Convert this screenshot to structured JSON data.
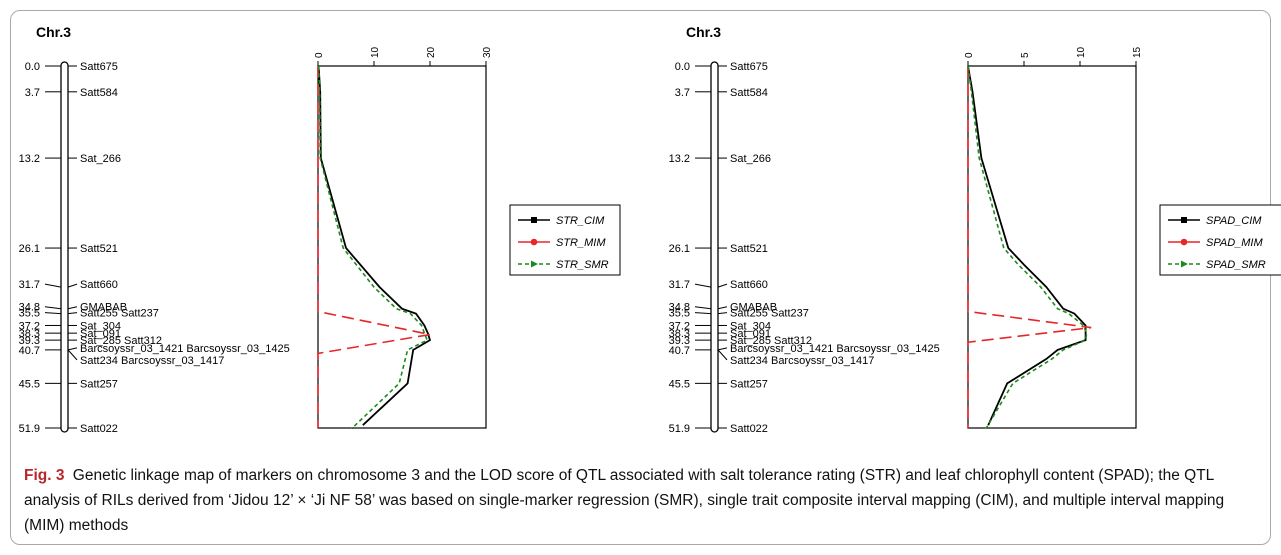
{
  "caption": {
    "label": "Fig. 3",
    "text": "Genetic linkage map of markers on chromosome 3 and the LOD score of QTL associated with salt tolerance rating (STR) and leaf chlorophyll content (SPAD); the QTL analysis of RILs derived from ‘Jidou 12’ × ‘Ji NF 58’ was based on single-marker regression (SMR), single trait composite interval mapping (CIM), and multiple interval mapping (MIM) methods"
  },
  "linkage_map": {
    "title": "Chr.3",
    "markers": [
      {
        "pos": 0.0,
        "pos_label": "0.0",
        "label": "Satt675"
      },
      {
        "pos": 3.7,
        "pos_label": "3.7",
        "label": "Satt584"
      },
      {
        "pos": 13.2,
        "pos_label": "13.2",
        "label": "Sat_266"
      },
      {
        "pos": 26.1,
        "pos_label": "26.1",
        "label": "Satt521"
      },
      {
        "pos": 31.7,
        "pos_label": "31.7",
        "label": "Satt660"
      },
      {
        "pos": 34.8,
        "pos_label": "34.8",
        "label": "GMABAB"
      },
      {
        "pos": 35.5,
        "pos_label": "35.5",
        "label": "Satt255 Satt237"
      },
      {
        "pos": 37.2,
        "pos_label": "37.2",
        "label": "Sat_304"
      },
      {
        "pos": 38.3,
        "pos_label": "38.3",
        "label": "Sat_091"
      },
      {
        "pos": 39.3,
        "pos_label": "39.3",
        "label": "Sat_285 Satt312"
      },
      {
        "pos": 40.7,
        "pos_label": "40.7",
        "label": "Barcsoyssr_03_1421 Barcsoyssr_03_1425"
      },
      {
        "pos": 40.7,
        "pos_label": "",
        "label": "Satt234 Barcsoyssr_03_1417"
      },
      {
        "pos": 45.5,
        "pos_label": "45.5",
        "label": "Satt257"
      },
      {
        "pos": 51.9,
        "pos_label": "51.9",
        "label": "Satt022"
      }
    ]
  },
  "colors": {
    "cim": "#000000",
    "mim": "#e8262a",
    "smr": "#1b8a1b",
    "caption_label": "#b8282b",
    "frame": "#a9a9a9"
  },
  "chart_data": [
    {
      "type": "line",
      "title": "",
      "xlabel": "",
      "ylabel": "",
      "orientation": "horizontal-value-vertical-position",
      "xlim": [
        0,
        30
      ],
      "xticks": [
        "0",
        "10",
        "20",
        "30"
      ],
      "ylim": [
        0,
        51.9
      ],
      "series": [
        {
          "name": "STR_CIM",
          "points": [
            [
              0.1,
              0
            ],
            [
              0.4,
              3.7
            ],
            [
              0.5,
              13.2
            ],
            [
              5,
              26.1
            ],
            [
              11,
              31.7
            ],
            [
              15,
              34.8
            ],
            [
              17.5,
              35.5
            ],
            [
              19,
              37.2
            ],
            [
              19.6,
              38.3
            ],
            [
              20,
              39.3
            ],
            [
              17,
              40.7
            ],
            [
              16,
              45.5
            ],
            [
              8,
              51.5
            ]
          ]
        },
        {
          "name": "STR_MIM",
          "points": [
            [
              0,
              0
            ],
            [
              0,
              35.2
            ],
            [
              20,
              38.5
            ],
            [
              0,
              41.2
            ],
            [
              0,
              51.9
            ]
          ]
        },
        {
          "name": "STR_SMR",
          "points": [
            [
              0.1,
              0
            ],
            [
              0.3,
              3.7
            ],
            [
              0.4,
              13.2
            ],
            [
              4.5,
              26.1
            ],
            [
              10,
              31.7
            ],
            [
              14,
              34.8
            ],
            [
              16.5,
              35.5
            ],
            [
              18.5,
              37.2
            ],
            [
              19,
              38.3
            ],
            [
              19.5,
              39.3
            ],
            [
              16,
              40.7
            ],
            [
              14.5,
              45.5
            ],
            [
              6,
              52
            ]
          ]
        }
      ]
    },
    {
      "type": "line",
      "title": "",
      "xlabel": "",
      "ylabel": "",
      "orientation": "horizontal-value-vertical-position",
      "xlim": [
        0,
        15
      ],
      "xticks": [
        "0",
        "5",
        "10",
        "15"
      ],
      "ylim": [
        0,
        51.9
      ],
      "series": [
        {
          "name": "SPAD_CIM",
          "points": [
            [
              0,
              0
            ],
            [
              0.4,
              3.7
            ],
            [
              1.2,
              13.2
            ],
            [
              3.6,
              26.1
            ],
            [
              5,
              28.5
            ],
            [
              7,
              31.7
            ],
            [
              8.5,
              34.8
            ],
            [
              9.5,
              35.5
            ],
            [
              10.5,
              37.2
            ],
            [
              10.5,
              38.3
            ],
            [
              10.5,
              39.3
            ],
            [
              8,
              40.7
            ],
            [
              7,
              42
            ],
            [
              3.5,
              45.5
            ],
            [
              1.8,
              51.5
            ]
          ]
        },
        {
          "name": "SPAD_MIM",
          "points": [
            [
              0,
              0
            ],
            [
              0,
              35.2
            ],
            [
              11,
              37.5
            ],
            [
              0,
              39.6
            ],
            [
              0,
              51.9
            ]
          ]
        },
        {
          "name": "SPAD_SMR",
          "points": [
            [
              0,
              0
            ],
            [
              0.3,
              3.7
            ],
            [
              1,
              13.2
            ],
            [
              3.2,
              26.1
            ],
            [
              4.5,
              28.5
            ],
            [
              6.5,
              31.7
            ],
            [
              8,
              34.8
            ],
            [
              9,
              35.5
            ],
            [
              10.3,
              37.2
            ],
            [
              10.6,
              38.3
            ],
            [
              10.5,
              39.3
            ],
            [
              8.5,
              40.7
            ],
            [
              7.5,
              42
            ],
            [
              4,
              45.5
            ],
            [
              1.6,
              52
            ]
          ]
        }
      ]
    }
  ]
}
